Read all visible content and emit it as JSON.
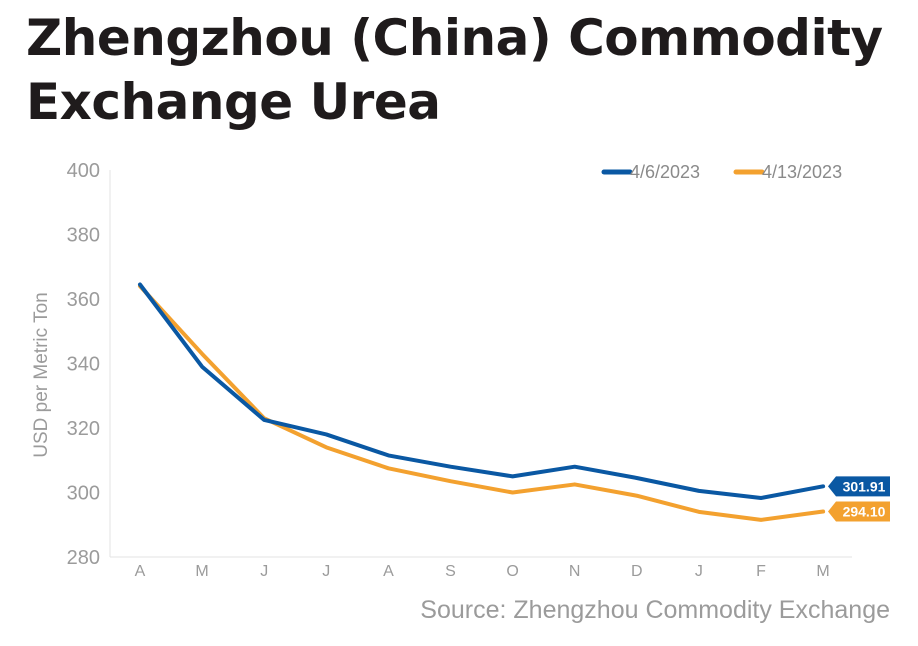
{
  "title": "Zhengzhou (China) Commodity Exchange Urea",
  "source": "Source: Zhengzhou Commodity Exchange",
  "chart_data": {
    "type": "line",
    "title": "Zhengzhou (China) Commodity Exchange Urea",
    "xlabel": "",
    "ylabel": "USD per Metric Ton",
    "categories": [
      "A",
      "M",
      "J",
      "J",
      "A",
      "S",
      "O",
      "N",
      "D",
      "J",
      "F",
      "M"
    ],
    "ylim": [
      280,
      400
    ],
    "yticks": [
      280,
      300,
      320,
      340,
      360,
      380,
      400
    ],
    "grid": false,
    "legend_position": "top-right",
    "series": [
      {
        "name": "4/6/2023",
        "color": "#0a58a3",
        "values": [
          364.5,
          339,
          322.5,
          318,
          311.5,
          308,
          305,
          308,
          304.5,
          300.5,
          298.3,
          301.91
        ],
        "end_label": "301.91"
      },
      {
        "name": "4/13/2023",
        "color": "#f3a12f",
        "values": [
          364,
          343,
          323,
          314,
          307.5,
          303.5,
          300,
          302.5,
          299,
          294,
          291.5,
          294.1
        ],
        "end_label": "294.10"
      }
    ]
  }
}
